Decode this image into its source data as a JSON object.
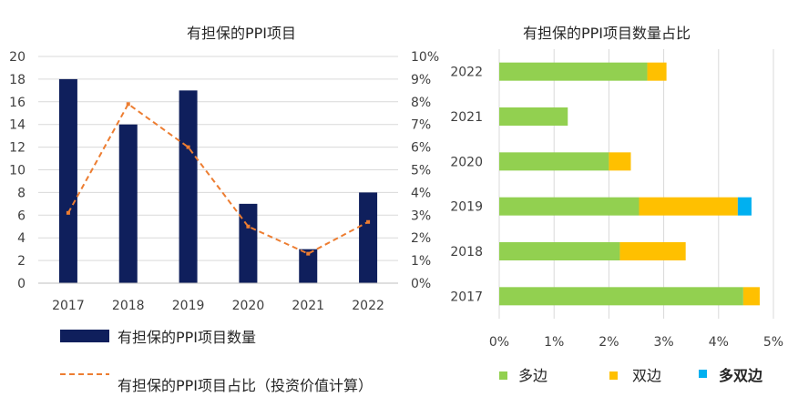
{
  "chart_data": [
    {
      "type": "bar",
      "title": "有担保的PPI项目",
      "categories": [
        "2017",
        "2018",
        "2019",
        "2020",
        "2021",
        "2022"
      ],
      "ylim": [
        0,
        20
      ],
      "y_ticks": [
        "0",
        "2",
        "4",
        "6",
        "8",
        "10",
        "12",
        "14",
        "16",
        "18",
        "20"
      ],
      "y2lim": [
        0,
        10
      ],
      "y2_ticks": [
        "0%",
        "1%",
        "2%",
        "3%",
        "4%",
        "5%",
        "6%",
        "7%",
        "8%",
        "9%",
        "10%"
      ],
      "grid": true,
      "legend_position": "bottom",
      "series": [
        {
          "name": "有担保的PPI项目数量",
          "type": "bar",
          "axis": "left",
          "color": "#0f1f5c",
          "values": [
            18,
            14,
            17,
            7,
            3,
            8
          ]
        },
        {
          "name": "有担保的PPI项目占比（投资价值计算）",
          "type": "line",
          "style": "dashed",
          "axis": "right",
          "color": "#ed7d31",
          "values": [
            3.1,
            7.9,
            6.0,
            2.5,
            1.3,
            2.7
          ]
        }
      ]
    },
    {
      "type": "bar",
      "orientation": "horizontal",
      "stacked": true,
      "title": "有担保的PPI项目数量占比",
      "categories": [
        "2017",
        "2018",
        "2019",
        "2020",
        "2021",
        "2022"
      ],
      "xlim": [
        0,
        5
      ],
      "x_ticks": [
        "0%",
        "1%",
        "2%",
        "3%",
        "4%",
        "5%"
      ],
      "grid": true,
      "legend_position": "bottom",
      "series": [
        {
          "name": "多边",
          "color": "#92d050",
          "values": [
            4.45,
            2.2,
            2.55,
            2.0,
            1.25,
            2.7
          ]
        },
        {
          "name": "双边",
          "color": "#ffc000",
          "values": [
            0.3,
            1.2,
            1.8,
            0.4,
            0,
            0.35
          ]
        },
        {
          "name": "多双边",
          "color": "#00b0f0",
          "values": [
            0,
            0,
            0.25,
            0,
            0,
            0
          ]
        }
      ]
    }
  ]
}
